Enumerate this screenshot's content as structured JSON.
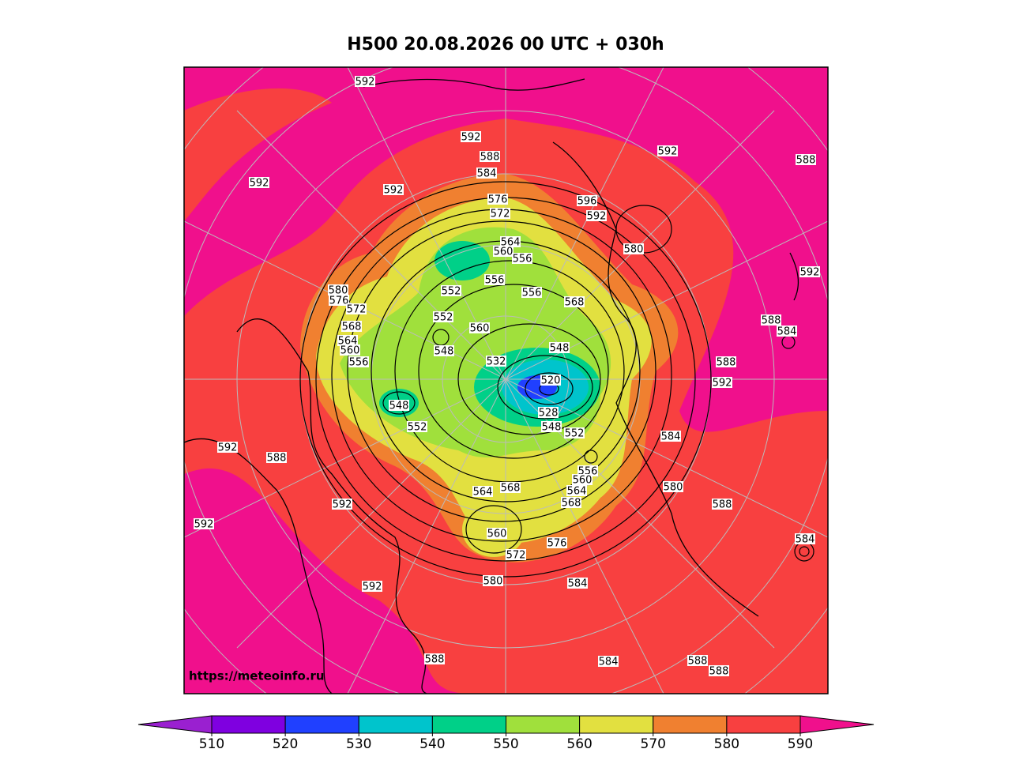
{
  "title": "H500  20.08.2026 00 UTC + 030h",
  "watermark": "https://meteoinfo.ru",
  "contour_labels": [
    "592",
    "592",
    "588",
    "592",
    "588",
    "592",
    "592",
    "584",
    "576",
    "596",
    "572",
    "592",
    "564",
    "560",
    "556",
    "580",
    "592",
    "556",
    "580",
    "576",
    "552",
    "556",
    "568",
    "572",
    "552",
    "568",
    "560",
    "588",
    "584",
    "564",
    "560",
    "548",
    "548",
    "556",
    "532",
    "588",
    "520",
    "592",
    "548",
    "528",
    "548",
    "552",
    "552",
    "584",
    "592",
    "588",
    "556",
    "560",
    "580",
    "568",
    "564",
    "592",
    "564",
    "568",
    "588",
    "592",
    "560",
    "584",
    "576",
    "572",
    "580",
    "584",
    "592",
    "588",
    "584",
    "588",
    "588"
  ],
  "colorbar": {
    "ticks": [
      510,
      520,
      530,
      540,
      550,
      560,
      570,
      580,
      590
    ],
    "colors": [
      "#7f00e0",
      "#2040ff",
      "#00c4cc",
      "#00d088",
      "#a0e03c",
      "#e2e040",
      "#f08030",
      "#f84040"
    ],
    "under_color": "#9a20d0",
    "over_color": "#f0108c"
  }
}
